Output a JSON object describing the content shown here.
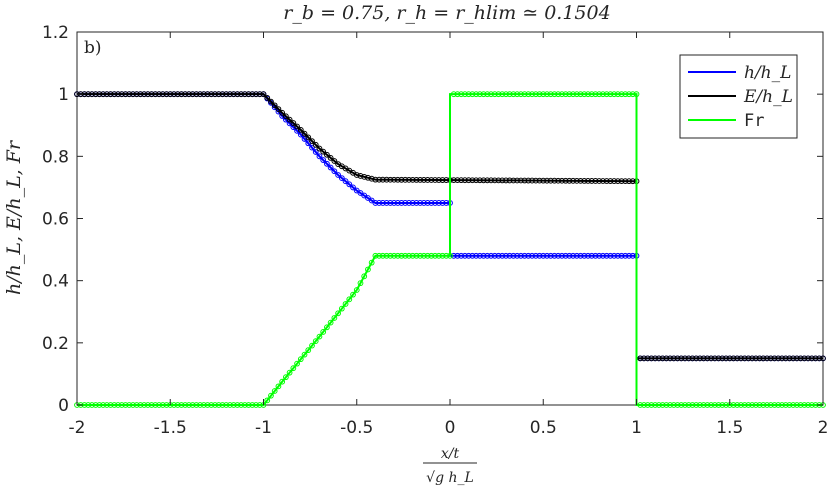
{
  "chart_data": {
    "type": "line",
    "title": "r_b = 0.75,    r_h = r_hlim ≃ 0.1504",
    "panel_label": "b)",
    "xlabel": "x/t / √(g h_L)",
    "xlabel_num": "x/t",
    "xlabel_den": "√g h_L",
    "ylabel": "h/h_L,   E/h_L,   Fr",
    "xlim": [
      -2,
      2
    ],
    "ylim": [
      0,
      1.2
    ],
    "xticks": [
      -2,
      -1.5,
      -1,
      -0.5,
      0,
      0.5,
      1,
      1.5,
      2
    ],
    "xtick_labels": [
      "-2",
      "-1.5",
      "-1",
      "-0.5",
      "0",
      "0.5",
      "1",
      "1.5",
      "2"
    ],
    "yticks": [
      0,
      0.2,
      0.4,
      0.6,
      0.8,
      1,
      1.2
    ],
    "ytick_labels": [
      "0",
      "0.2",
      "0.4",
      "0.6",
      "0.8",
      "1",
      "1.2"
    ],
    "grid": false,
    "legend_position": "top-right",
    "series": [
      {
        "name": "h/h_L",
        "color": "#0000ff",
        "points": [
          [
            -2,
            1
          ],
          [
            -1,
            1
          ],
          [
            -0.9,
            0.93
          ],
          [
            -0.8,
            0.87
          ],
          [
            -0.7,
            0.8
          ],
          [
            -0.6,
            0.74
          ],
          [
            -0.5,
            0.69
          ],
          [
            -0.4,
            0.65
          ],
          [
            0,
            0.65
          ],
          [
            0,
            0.48
          ],
          [
            1,
            0.48
          ],
          [
            1,
            0.15
          ],
          [
            2,
            0.15
          ]
        ]
      },
      {
        "name": "E/h_L",
        "color": "#000000",
        "points": [
          [
            -2,
            1
          ],
          [
            -1,
            1
          ],
          [
            -0.9,
            0.94
          ],
          [
            -0.8,
            0.885
          ],
          [
            -0.7,
            0.825
          ],
          [
            -0.6,
            0.775
          ],
          [
            -0.5,
            0.74
          ],
          [
            -0.4,
            0.725
          ],
          [
            1,
            0.72
          ],
          [
            1,
            0.15
          ],
          [
            2,
            0.15
          ]
        ]
      },
      {
        "name": "Fr",
        "color": "#00ff00",
        "points": [
          [
            -2,
            0
          ],
          [
            -1,
            0
          ],
          [
            -0.9,
            0.075
          ],
          [
            -0.7,
            0.22
          ],
          [
            -0.5,
            0.37
          ],
          [
            -0.4,
            0.48
          ],
          [
            0,
            0.48
          ],
          [
            0,
            1
          ],
          [
            1,
            1
          ],
          [
            1,
            0
          ],
          [
            2,
            0
          ]
        ]
      }
    ]
  },
  "legend": {
    "items": [
      {
        "label": "h/h_L",
        "color": "#0000ff",
        "mono": false
      },
      {
        "label": "E/h_L",
        "color": "#000000",
        "mono": false
      },
      {
        "label": "Fr",
        "color": "#00ff00",
        "mono": true
      }
    ]
  }
}
